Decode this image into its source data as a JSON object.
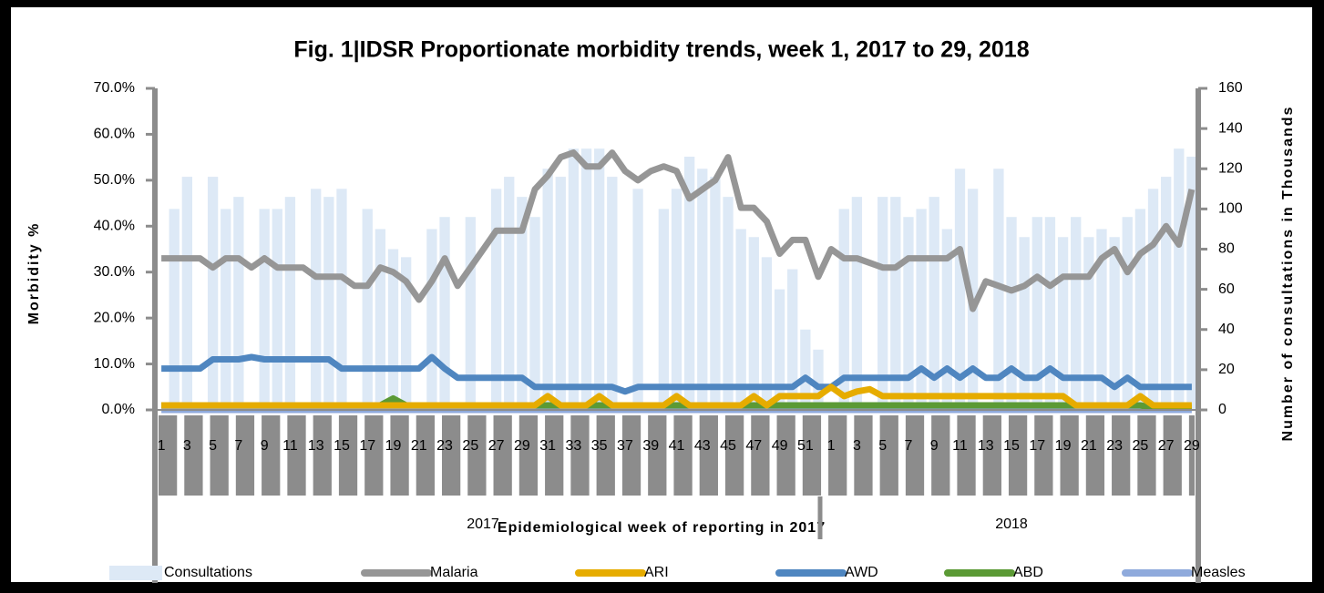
{
  "chart_data": {
    "type": "combo",
    "title": "Fig. 1|IDSR Proportionate morbidity trends, week 1, 2017 to 29, 2018",
    "y_label": "Morbidity %",
    "y2_label": "Number of consultations in Thousands",
    "x_label": "Epidemiological week of reporting in 2017",
    "year_labels": [
      "2017",
      "2018"
    ],
    "categories": [
      "1",
      null,
      "3",
      null,
      "5",
      null,
      "7",
      null,
      "9",
      null,
      "11",
      null,
      "13",
      null,
      "15",
      null,
      "17",
      null,
      "19",
      null,
      "21",
      null,
      "23",
      null,
      "25",
      null,
      "27",
      null,
      "29",
      null,
      "31",
      null,
      "33",
      null,
      "35",
      null,
      "37",
      null,
      "39",
      null,
      "41",
      null,
      "43",
      null,
      "45",
      null,
      "47",
      null,
      "49",
      null,
      "51",
      null,
      "1",
      null,
      "3",
      null,
      "5",
      null,
      "7",
      null,
      "9",
      null,
      "11",
      null,
      "13",
      null,
      "15",
      null,
      "17",
      null,
      "19",
      null,
      "21",
      null,
      "23",
      null,
      "25",
      null,
      "27",
      null,
      "29"
    ],
    "ylim": [
      0,
      70
    ],
    "yticks": [
      {
        "value": 0,
        "label": "0.0%"
      },
      {
        "value": 10,
        "label": "10.0%"
      },
      {
        "value": 20,
        "label": "20.0%"
      },
      {
        "value": 30,
        "label": "30.0%"
      },
      {
        "value": 40,
        "label": "40.0%"
      },
      {
        "value": 50,
        "label": "50.0%"
      },
      {
        "value": 60,
        "label": "60.0%"
      },
      {
        "value": 70,
        "label": "70.0%"
      }
    ],
    "y2lim": [
      0,
      160
    ],
    "y2ticks": [
      0,
      20,
      40,
      60,
      80,
      100,
      120,
      140,
      160
    ],
    "series": [
      {
        "name": "Consultations",
        "kind": "bar",
        "axis": "y2",
        "color": "#dde9f6",
        "values": [
          null,
          100,
          116,
          null,
          116,
          100,
          106,
          null,
          100,
          100,
          106,
          null,
          110,
          106,
          110,
          null,
          100,
          90,
          80,
          76,
          null,
          90,
          96,
          null,
          96,
          null,
          110,
          116,
          106,
          96,
          120,
          116,
          130,
          130,
          130,
          116,
          null,
          110,
          null,
          100,
          110,
          126,
          120,
          116,
          106,
          90,
          86,
          76,
          60,
          70,
          40,
          30,
          null,
          100,
          106,
          null,
          106,
          106,
          96,
          100,
          106,
          90,
          120,
          110,
          null,
          120,
          96,
          86,
          96,
          96,
          86,
          96,
          86,
          90,
          86,
          96,
          100,
          110,
          116,
          130,
          126
        ]
      },
      {
        "name": "Malaria",
        "kind": "line",
        "color": "#969696",
        "values": [
          33,
          33,
          33,
          33,
          31,
          33,
          33,
          31,
          33,
          31,
          31,
          31,
          29,
          29,
          29,
          27,
          27,
          31,
          30,
          28,
          24,
          28,
          33,
          27,
          31,
          35,
          39,
          39,
          39,
          48,
          51,
          55,
          56,
          53,
          53,
          56,
          52,
          50,
          52,
          53,
          52,
          46,
          48,
          50,
          55,
          44,
          44,
          41,
          34,
          37,
          37,
          29,
          35,
          33,
          33,
          32,
          31,
          31,
          33,
          33,
          33,
          33,
          35,
          22,
          28,
          27,
          26,
          27,
          29,
          27,
          29,
          29,
          29,
          33,
          35,
          30,
          34,
          36,
          40,
          36,
          48
        ]
      },
      {
        "name": "ARI",
        "kind": "line",
        "color": "#e6ac00",
        "values": [
          1,
          1,
          1,
          1,
          1,
          1,
          1,
          1,
          1,
          1,
          1,
          1,
          1,
          1,
          1,
          1,
          1,
          1,
          1,
          1,
          1,
          1,
          1,
          1,
          1,
          1,
          1,
          1,
          1,
          1,
          3,
          1,
          1,
          1,
          3,
          1,
          1,
          1,
          1,
          1,
          3,
          1,
          1,
          1,
          1,
          1,
          3,
          1,
          3,
          3,
          3,
          3,
          5,
          3,
          4,
          4.5,
          3,
          3,
          3,
          3,
          3,
          3,
          3,
          3,
          3,
          3,
          3,
          3,
          3,
          3,
          3,
          1,
          1,
          1,
          1,
          1,
          3,
          1,
          1,
          1,
          1
        ]
      },
      {
        "name": "AWD",
        "kind": "line",
        "color": "#4f86c0",
        "values": [
          9,
          9,
          9,
          9,
          11,
          11,
          11,
          11.5,
          11,
          11,
          11,
          11,
          11,
          11,
          9,
          9,
          9,
          9,
          9,
          9,
          9,
          11.5,
          9,
          7,
          7,
          7,
          7,
          7,
          7,
          5,
          5,
          5,
          5,
          5,
          5,
          5,
          4,
          5,
          5,
          5,
          5,
          5,
          5,
          5,
          5,
          5,
          5,
          5,
          5,
          5,
          7,
          5,
          5,
          7,
          7,
          7,
          7,
          7,
          7,
          9,
          7,
          9,
          7,
          9,
          7,
          7,
          9,
          7,
          7,
          9,
          7,
          7,
          7,
          7,
          5,
          7,
          5,
          5,
          5,
          5,
          5
        ]
      },
      {
        "name": "ABD",
        "kind": "line",
        "color": "#5b9a35",
        "values": [
          1,
          1,
          1,
          1,
          1,
          1,
          1,
          1,
          1,
          1,
          1,
          1,
          1,
          1,
          1,
          1,
          1,
          1,
          2.5,
          1,
          1,
          1,
          1,
          1,
          1,
          1,
          1,
          1,
          1,
          1,
          1,
          1,
          1,
          1,
          1,
          1,
          1,
          1,
          1,
          1,
          1,
          1,
          1,
          1,
          1,
          1,
          1,
          1,
          1,
          1,
          1,
          1,
          1,
          1,
          1,
          1,
          1,
          1,
          1,
          1,
          1,
          1,
          1,
          1,
          1,
          1,
          1,
          1,
          1,
          1,
          1,
          1,
          1,
          1,
          1,
          1,
          1,
          0.5,
          0.5,
          0.5,
          0.5
        ]
      },
      {
        "name": "Measles",
        "kind": "line",
        "color": "#8faadc",
        "values": [
          0,
          0,
          0,
          0,
          0,
          0,
          0,
          0,
          0,
          0,
          0,
          0,
          0,
          0,
          0,
          0,
          0,
          0,
          0,
          0,
          0,
          0,
          0,
          0,
          0,
          0,
          0,
          0,
          0,
          0,
          0,
          0,
          0,
          0,
          0,
          0,
          0,
          0,
          0,
          0,
          0,
          0,
          0,
          0,
          0,
          0,
          0,
          0,
          0,
          0,
          0,
          0,
          0,
          0,
          0,
          0,
          0,
          0,
          0,
          0,
          0,
          0,
          0,
          0,
          0,
          0,
          0,
          0,
          0,
          0,
          0,
          0,
          0,
          0,
          0,
          0,
          0,
          0,
          0,
          0,
          0
        ]
      }
    ]
  }
}
